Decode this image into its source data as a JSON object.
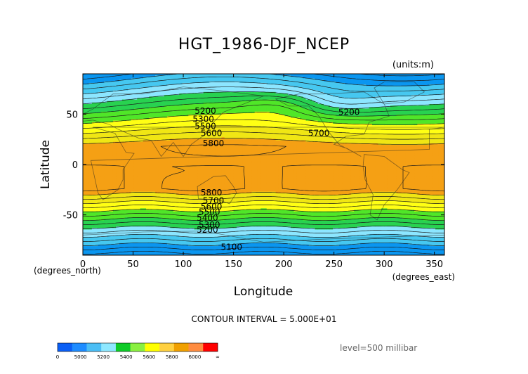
{
  "chart_data": {
    "type": "heatmap",
    "title": "HGT_1986-DJF_NCEP",
    "units_label": "(units:m)",
    "xlabel": "Longitude",
    "ylabel": "Latitude",
    "x_unit_label": "(degrees_east)",
    "y_unit_label": "(degrees_north)",
    "xlim": [
      0,
      360
    ],
    "ylim": [
      -90,
      90
    ],
    "x_ticks": [
      "0",
      "50",
      "100",
      "150",
      "200",
      "250",
      "300",
      "350"
    ],
    "x_tick_values": [
      0,
      50,
      100,
      150,
      200,
      250,
      300,
      350
    ],
    "y_ticks": [
      "50",
      "0",
      "-50"
    ],
    "y_tick_values": [
      50,
      0,
      -50
    ],
    "contour_interval_label": "CONTOUR INTERVAL = 5.000E+01",
    "level_label": "level=500 millibar",
    "contour_labels": [
      {
        "text": "5200",
        "lon": 122,
        "lat": 53
      },
      {
        "text": "5300",
        "lon": 120,
        "lat": 45
      },
      {
        "text": "5500",
        "lon": 122,
        "lat": 38
      },
      {
        "text": "5600",
        "lon": 128,
        "lat": 31
      },
      {
        "text": "5800",
        "lon": 130,
        "lat": 21
      },
      {
        "text": "5700",
        "lon": 235,
        "lat": 31
      },
      {
        "text": "5200",
        "lon": 265,
        "lat": 52
      },
      {
        "text": "5800",
        "lon": 128,
        "lat": -28
      },
      {
        "text": "5700",
        "lon": 130,
        "lat": -36
      },
      {
        "text": "5600",
        "lon": 128,
        "lat": -42
      },
      {
        "text": "5500",
        "lon": 126,
        "lat": -47
      },
      {
        "text": "5400",
        "lon": 124,
        "lat": -53
      },
      {
        "text": "5300",
        "lon": 126,
        "lat": -60
      },
      {
        "text": "5200",
        "lon": 124,
        "lat": -65
      },
      {
        "text": "5100",
        "lon": 148,
        "lat": -82
      }
    ],
    "colorbar": {
      "colors": [
        "#0a5ff5",
        "#1e8cff",
        "#4bbef5",
        "#8ee8ff",
        "#0ecb28",
        "#8af040",
        "#ffff00",
        "#ffd040",
        "#f0a000",
        "#ff8c40",
        "#ff0000"
      ],
      "tick_labels": [
        "0",
        "5000",
        "5200",
        "5400",
        "5600",
        "5800",
        "6000",
        "∞"
      ]
    },
    "band_colors": {
      "lt5200": "#0a96f0",
      "5200_5300": "#46c8f0",
      "5300_5400": "#8ce6ff",
      "5400_5500": "#28d250",
      "5500_5600": "#50e628",
      "5600_5700": "#ffff14",
      "5700_5800": "#f0e614",
      "ge5800": "#f5a014"
    }
  }
}
